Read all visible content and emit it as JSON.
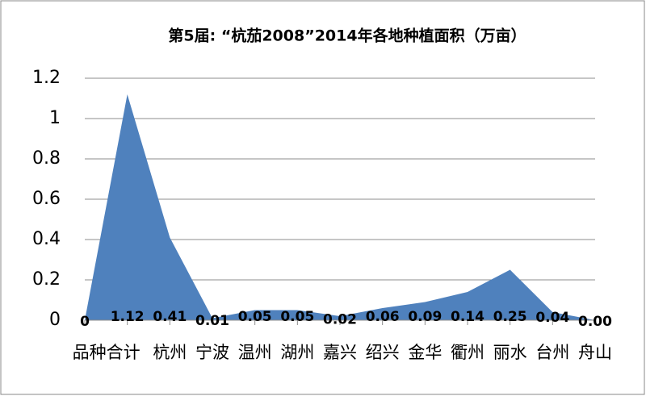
{
  "chart_data": {
    "type": "area",
    "title": "第5届: “杭茄2008”2014年各地种植面积（万亩）",
    "categories": [
      null,
      "品种合计",
      "杭州",
      "宁波",
      "温州",
      "湖州",
      "嘉兴",
      "绍兴",
      "金华",
      "衢州",
      "丽水",
      "台州",
      "舟山"
    ],
    "values": [
      0,
      1.12,
      0.41,
      0.01,
      0.05,
      0.05,
      0.02,
      0.06,
      0.09,
      0.14,
      0.25,
      0.04,
      0
    ],
    "value_labels": [
      "0",
      "1.12",
      "0.41",
      "0.01",
      "0.05",
      "0.05",
      "0.02",
      "0.06",
      "0.09",
      "0.14",
      "0.25",
      "0.04",
      "0.00"
    ],
    "color": "#4f81bd",
    "ylim": [
      0,
      1.2
    ],
    "yticks": [
      0,
      0.2,
      0.4,
      0.6,
      0.8,
      1,
      1.2
    ],
    "grid": true
  }
}
